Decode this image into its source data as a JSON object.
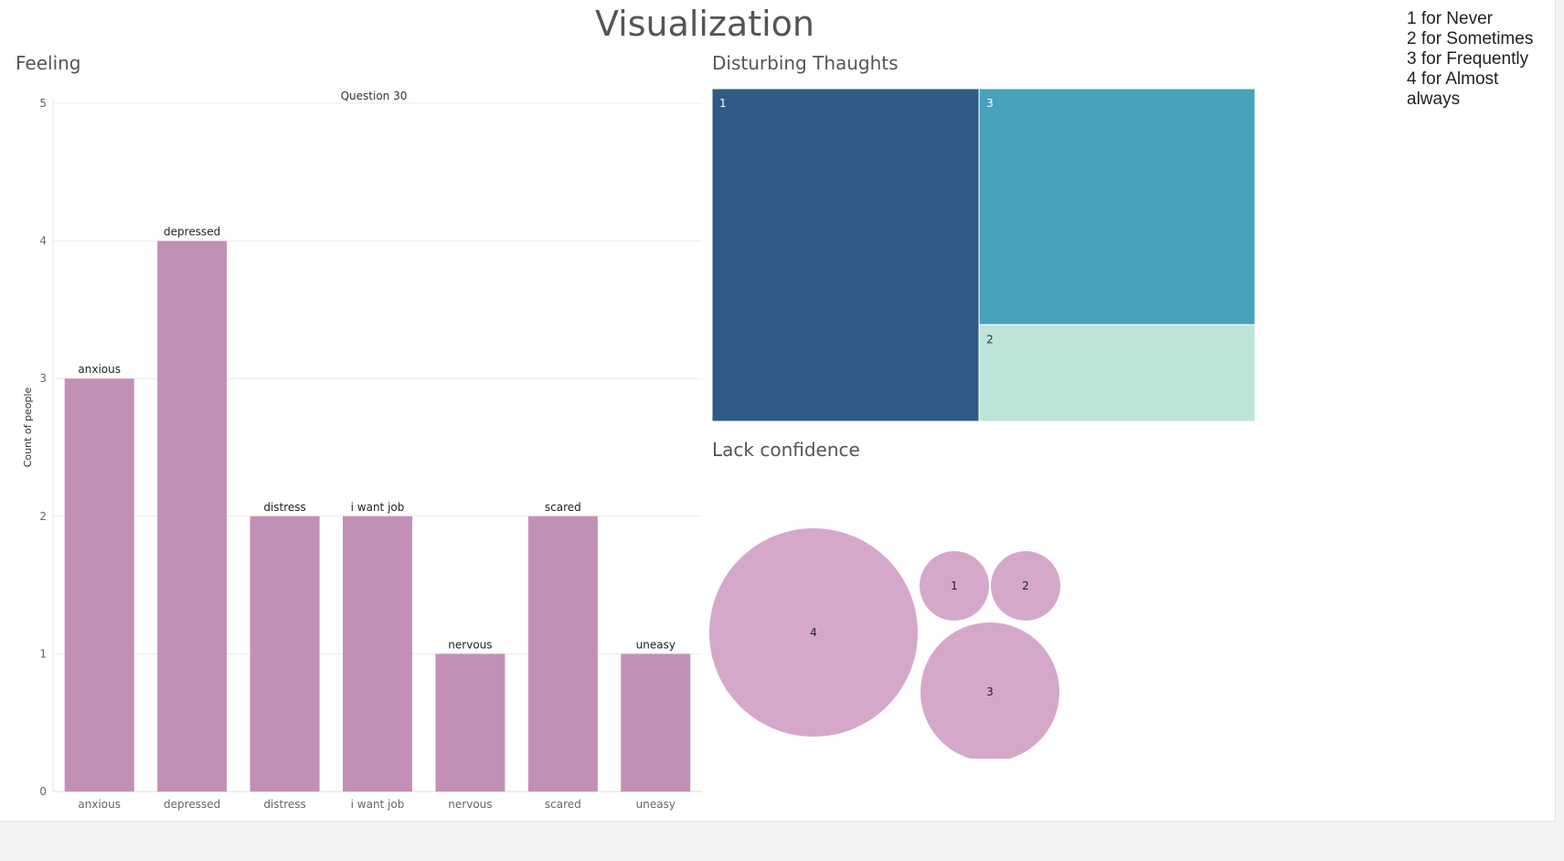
{
  "dashboard": {
    "title": "Visualization",
    "legend_note": [
      "1 for Never",
      "2 for Sometimes",
      "3 for Frequently",
      "4 for Almost",
      "always"
    ]
  },
  "sheets": {
    "feeling": "Feeling",
    "disturbing": "Disturbing Thaughts",
    "lack": "Lack confidence"
  },
  "colors": {
    "bar": "#c390b5",
    "treemap": {
      "1": "#2e5a86",
      "3": "#47a2ba",
      "2": "#bde5d9"
    },
    "bubble": "#d5a8c9",
    "grid": "#ececec",
    "axis_text": "#666666"
  },
  "chart_data": [
    {
      "type": "bar",
      "title": "Question 30",
      "ylabel": "Count of people",
      "xlabel": "",
      "categories": [
        "anxious",
        "depressed",
        "distress",
        "i want job",
        "nervous",
        "scared",
        "uneasy"
      ],
      "values": [
        3,
        4,
        2,
        2,
        1,
        2,
        1
      ],
      "yticks": [
        0,
        1,
        2,
        3,
        4,
        5
      ],
      "ylim": [
        0,
        5
      ],
      "grid": true
    },
    {
      "type": "treemap",
      "title": "Disturbing Thaughts",
      "labels": [
        "1",
        "3",
        "2"
      ],
      "values": [
        6,
        4.4,
        1.8
      ]
    },
    {
      "type": "bubble",
      "title": "Lack confidence",
      "labels": [
        "4",
        "1",
        "2",
        "3"
      ],
      "values": [
        9,
        1,
        1,
        4
      ]
    }
  ]
}
